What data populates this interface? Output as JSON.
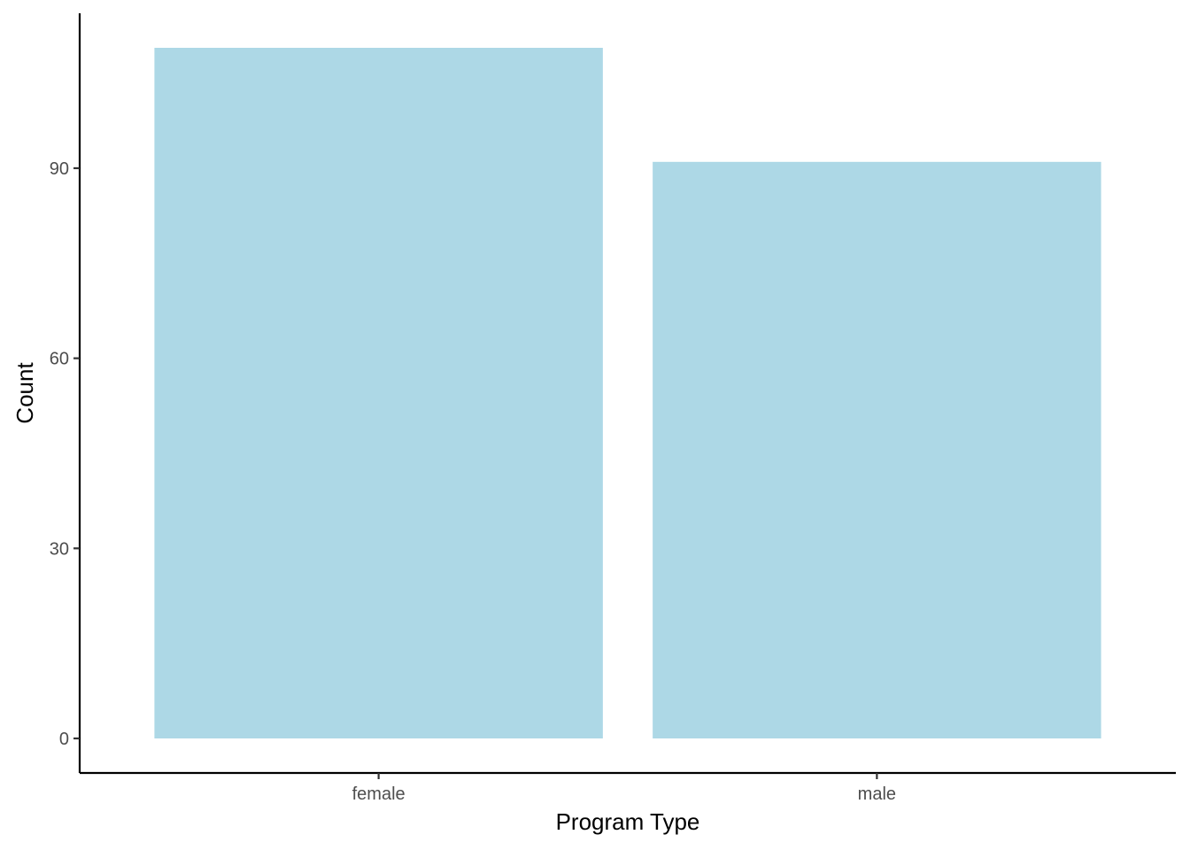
{
  "chart_data": {
    "type": "bar",
    "title": "",
    "xlabel": "Program Type",
    "ylabel": "Count",
    "categories": [
      "female",
      "male"
    ],
    "values": [
      109,
      91
    ],
    "yticks": [
      0,
      30,
      60,
      90
    ],
    "ylim": [
      -5.45,
      114.45
    ],
    "grid": false,
    "legend": "none",
    "bar_color": "#ADD8E6",
    "axis_color": "#000000",
    "tick_label_color": "#4D4D4D"
  }
}
